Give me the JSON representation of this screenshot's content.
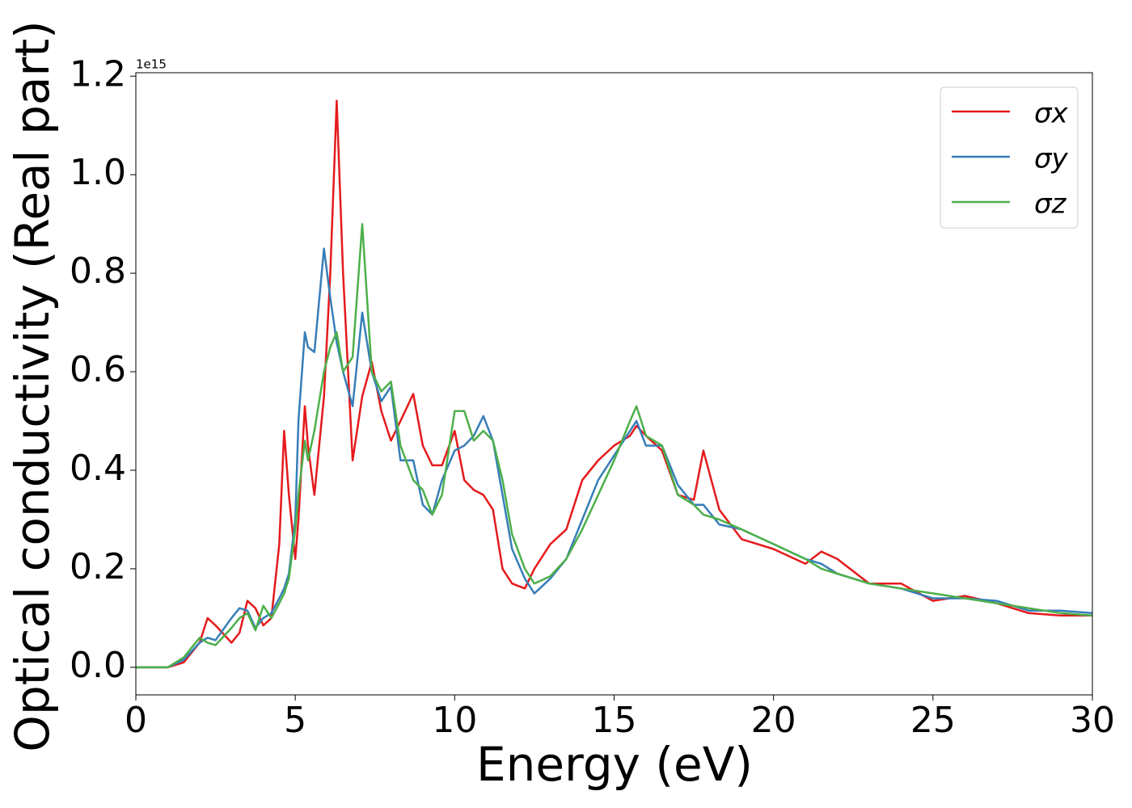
{
  "chart_data": {
    "type": "line",
    "xlabel": "Energy (eV)",
    "ylabel": "Optical conductivity (Real part)",
    "y_offset_label": "1e15",
    "xlim": [
      0,
      30
    ],
    "ylim": [
      -0.056,
      1.207
    ],
    "xticks": [
      0,
      5,
      10,
      15,
      20,
      25,
      30
    ],
    "yticks": [
      {
        "value": 0,
        "label": "0.0"
      },
      0.2,
      0.4,
      0.6,
      0.8,
      {
        "value": 1,
        "label": "1.0"
      },
      1.2
    ],
    "legend": "upper right",
    "x": [
      0,
      0.5,
      1,
      1.5,
      2,
      2.25,
      2.5,
      3,
      3.25,
      3.5,
      3.75,
      4,
      4.25,
      4.5,
      4.65,
      4.8,
      5,
      5.1,
      5.3,
      5.4,
      5.6,
      5.9,
      6.1,
      6.3,
      6.5,
      6.8,
      7.1,
      7.4,
      7.7,
      8,
      8.3,
      8.7,
      9,
      9.3,
      9.6,
      10,
      10.3,
      10.6,
      10.9,
      11.2,
      11.5,
      11.8,
      12.2,
      12.5,
      13,
      13.5,
      14,
      14.5,
      15,
      15.5,
      15.7,
      16,
      16.5,
      17,
      17.5,
      17.8,
      18.3,
      19,
      20,
      21,
      21.5,
      22,
      23,
      24,
      25,
      26,
      27,
      28,
      29,
      30
    ],
    "series": [
      {
        "name": "σx",
        "color": "#e41a1c",
        "values": [
          0,
          0,
          0,
          0.01,
          0.05,
          0.1,
          0.085,
          0.05,
          0.07,
          0.135,
          0.12,
          0.085,
          0.1,
          0.25,
          0.48,
          0.35,
          0.22,
          0.3,
          0.53,
          0.45,
          0.35,
          0.55,
          0.8,
          1.15,
          0.8,
          0.42,
          0.55,
          0.62,
          0.52,
          0.46,
          0.5,
          0.555,
          0.45,
          0.41,
          0.41,
          0.48,
          0.38,
          0.36,
          0.35,
          0.32,
          0.2,
          0.17,
          0.16,
          0.2,
          0.25,
          0.28,
          0.38,
          0.42,
          0.45,
          0.47,
          0.49,
          0.47,
          0.44,
          0.35,
          0.34,
          0.44,
          0.32,
          0.26,
          0.24,
          0.21,
          0.235,
          0.22,
          0.17,
          0.17,
          0.135,
          0.145,
          0.13,
          0.11,
          0.105,
          0.105
        ]
      },
      {
        "name": "σy",
        "color": "#377eb8",
        "values": [
          0,
          0,
          0,
          0.015,
          0.05,
          0.06,
          0.055,
          0.1,
          0.12,
          0.115,
          0.08,
          0.1,
          0.11,
          0.14,
          0.16,
          0.19,
          0.3,
          0.5,
          0.68,
          0.65,
          0.64,
          0.85,
          0.75,
          0.66,
          0.6,
          0.53,
          0.72,
          0.6,
          0.54,
          0.57,
          0.42,
          0.42,
          0.33,
          0.31,
          0.38,
          0.44,
          0.45,
          0.47,
          0.51,
          0.46,
          0.35,
          0.24,
          0.18,
          0.15,
          0.18,
          0.22,
          0.3,
          0.38,
          0.43,
          0.48,
          0.5,
          0.45,
          0.45,
          0.37,
          0.33,
          0.33,
          0.29,
          0.28,
          0.25,
          0.22,
          0.21,
          0.19,
          0.17,
          0.16,
          0.14,
          0.14,
          0.135,
          0.115,
          0.115,
          0.11
        ]
      },
      {
        "name": "σz",
        "color": "#4daf4a",
        "values": [
          0,
          0,
          0,
          0.02,
          0.06,
          0.05,
          0.045,
          0.08,
          0.1,
          0.11,
          0.075,
          0.125,
          0.1,
          0.13,
          0.15,
          0.18,
          0.28,
          0.35,
          0.46,
          0.42,
          0.48,
          0.6,
          0.65,
          0.68,
          0.6,
          0.63,
          0.9,
          0.6,
          0.56,
          0.58,
          0.45,
          0.38,
          0.36,
          0.31,
          0.35,
          0.52,
          0.52,
          0.46,
          0.48,
          0.46,
          0.38,
          0.27,
          0.2,
          0.17,
          0.185,
          0.22,
          0.28,
          0.35,
          0.42,
          0.5,
          0.53,
          0.47,
          0.45,
          0.35,
          0.33,
          0.31,
          0.3,
          0.28,
          0.25,
          0.22,
          0.2,
          0.19,
          0.17,
          0.16,
          0.15,
          0.14,
          0.13,
          0.12,
          0.11,
          0.105
        ]
      }
    ]
  }
}
